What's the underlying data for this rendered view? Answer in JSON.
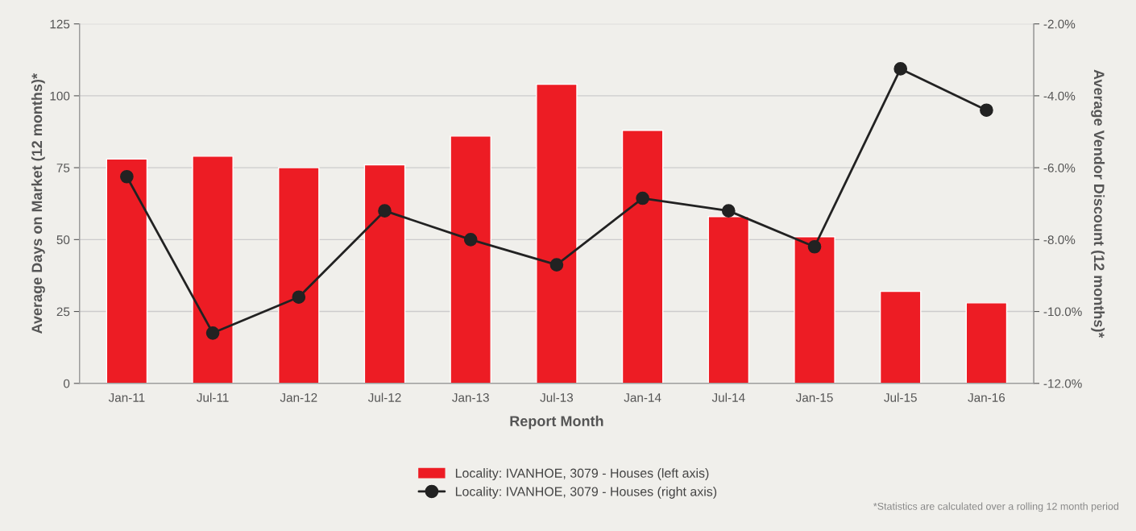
{
  "chart_data": {
    "type": "bar",
    "xlabel": "Report Month",
    "ylabel": "Average Days on Market (12 months)*",
    "y2label": "Average Vendor Discount (12 months)*",
    "categories": [
      "Jan-11",
      "Jul-11",
      "Jan-12",
      "Jul-12",
      "Jan-13",
      "Jul-13",
      "Jan-14",
      "Jul-14",
      "Jan-15",
      "Jul-15",
      "Jan-16"
    ],
    "series": [
      {
        "name": "Locality: IVANHOE, 3079 - Houses (left axis)",
        "color": "#ed1c24",
        "values": [
          78,
          79,
          75,
          76,
          86,
          104,
          88,
          58,
          51,
          32,
          28
        ]
      },
      {
        "name": "Locality: IVANHOE, 3079 - Houses (right axis)",
        "type": "line",
        "axis": "y2",
        "color": "#222222",
        "marker": "circle",
        "values": [
          -6.25,
          -10.6,
          -9.6,
          -7.2,
          -8.0,
          -8.7,
          -6.85,
          -7.2,
          -8.2,
          -3.25,
          -4.4
        ]
      }
    ],
    "ylim": [
      0,
      125
    ],
    "yticks": [
      0,
      25,
      50,
      75,
      100,
      125
    ],
    "y2lim": [
      -12,
      -2
    ],
    "y2ticks": [
      {
        "value": -12,
        "label": "-12.0%"
      },
      {
        "value": -10,
        "label": "-10.0%"
      },
      {
        "value": -8,
        "label": "-8.0%"
      },
      {
        "value": -6,
        "label": "-6.0%"
      },
      {
        "value": -4,
        "label": "-4.0%"
      },
      {
        "value": -2,
        "label": "-2.0%"
      }
    ],
    "grid": "y",
    "legend": "bottom",
    "annotations": [
      "*Statistics are calculated over a rolling 12 month period"
    ]
  }
}
